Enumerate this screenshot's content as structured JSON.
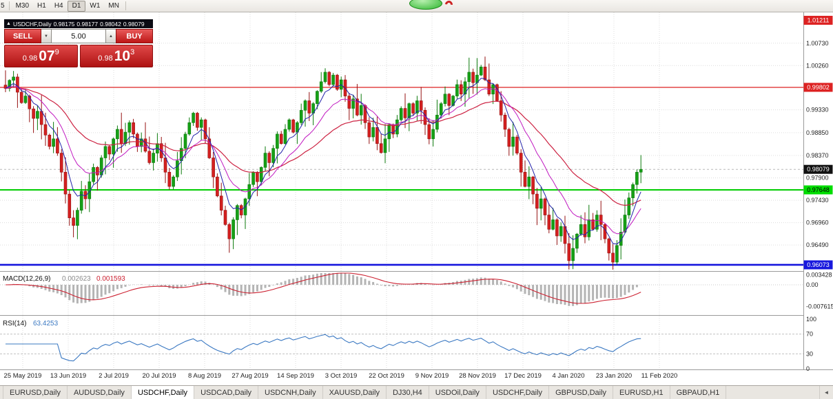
{
  "toolbar": {
    "timeframes": [
      {
        "label": "5",
        "active": false
      },
      {
        "label": "M30",
        "active": false
      },
      {
        "label": "H1",
        "active": false
      },
      {
        "label": "H4",
        "active": false
      },
      {
        "label": "D1",
        "active": true
      },
      {
        "label": "W1",
        "active": false
      },
      {
        "label": "MN",
        "active": false
      }
    ]
  },
  "trade_panel": {
    "collapse_icon": "▲",
    "title": "USDCHF,Daily",
    "ohlc": [
      "0.98175",
      "0.98177",
      "0.98042",
      "0.98079"
    ],
    "sell_label": "SELL",
    "buy_label": "BUY",
    "volume": "5.00",
    "down_icon": "▼",
    "up_icon": "▲",
    "sell_price": {
      "prefix": "0.98",
      "big": "07",
      "sup": "9"
    },
    "buy_price": {
      "prefix": "0.98",
      "big": "10",
      "sup": "3"
    }
  },
  "chart_data": {
    "type": "candlestick",
    "symbol": "USDCHF",
    "timeframe": "Daily",
    "price_range_visible": [
      0.9594,
      1.0138
    ],
    "bid_price": 0.98079,
    "first_open": 0.9985,
    "closes": [
      0.9978,
      0.9995,
      1.0002,
      0.997,
      0.9948,
      0.9962,
      0.9935,
      0.9915,
      0.993,
      0.9902,
      0.988,
      0.9856,
      0.9872,
      0.9842,
      0.9802,
      0.9756,
      0.9706,
      0.969,
      0.9722,
      0.9762,
      0.9746,
      0.9782,
      0.9812,
      0.9796,
      0.9832,
      0.9856,
      0.984,
      0.9872,
      0.9892,
      0.9862,
      0.9886,
      0.9906,
      0.9882,
      0.9856,
      0.9872,
      0.9846,
      0.9822,
      0.9842,
      0.9862,
      0.9832,
      0.9802,
      0.9772,
      0.9792,
      0.9826,
      0.9852,
      0.9882,
      0.9906,
      0.9926,
      0.9896,
      0.9912,
      0.9872,
      0.9832,
      0.9792,
      0.9752,
      0.9722,
      0.9692,
      0.9662,
      0.9702,
      0.9732,
      0.9712,
      0.9746,
      0.9776,
      0.9802,
      0.9782,
      0.9812,
      0.9842,
      0.9822,
      0.9852,
      0.9882,
      0.9862,
      0.9892,
      0.9912,
      0.9886,
      0.9906,
      0.9932,
      0.9952,
      0.9926,
      0.9946,
      0.9972,
      0.9992,
      1.0012,
      0.9986,
      1.0006,
      0.9976,
      0.9996,
      0.9962,
      0.9936,
      0.9956,
      0.9922,
      0.9942,
      0.9906,
      0.9876,
      0.9896,
      0.9862,
      0.9843,
      0.9872,
      0.9902,
      0.9882,
      0.9912,
      0.9936,
      0.9916,
      0.9946,
      0.9926,
      0.9952,
      0.9932,
      0.9902,
      0.9872,
      0.9892,
      0.9922,
      0.9946,
      0.9966,
      0.9942,
      0.9962,
      0.9986,
      0.9966,
      0.9992,
      1.0012,
      0.999,
      1.0006,
      1.0023,
      0.9996,
      0.9966,
      0.9986,
      0.9952,
      0.9922,
      0.9892,
      0.9856,
      0.9876,
      0.9842,
      0.9802,
      0.9772,
      0.9792,
      0.9756,
      0.9726,
      0.9746,
      0.9712,
      0.9682,
      0.9702,
      0.9668,
      0.9688,
      0.9652,
      0.9616,
      0.9642,
      0.9672,
      0.9692,
      0.9666,
      0.9702,
      0.9682,
      0.9712,
      0.9692,
      0.9662,
      0.9632,
      0.9613,
      0.9648,
      0.9676,
      0.9712,
      0.9748,
      0.9776,
      0.9802,
      0.98079
    ],
    "price_axis_labels": [
      "1.00730",
      "1.00260",
      "0.99330",
      "0.98850",
      "0.98370",
      "0.97900",
      "0.97430",
      "0.96960",
      "0.96490"
    ],
    "price_badges": [
      {
        "text": "1.01211",
        "bg": "#dd2222",
        "fg": "#ffffff"
      },
      {
        "text": "0.99802",
        "bg": "#dd2222",
        "fg": "#ffffff"
      },
      {
        "text": "0.98079",
        "bg": "#111111",
        "fg": "#ffffff"
      },
      {
        "text": "0.97648",
        "bg": "#00dd00",
        "fg": "#000000"
      },
      {
        "text": "0.96073",
        "bg": "#1818dd",
        "fg": "#ffffff"
      }
    ],
    "hlines": [
      {
        "price": 0.99802,
        "color": "#dd2222",
        "width": 1.2,
        "name": "resistance-line-red"
      },
      {
        "price": 0.97648,
        "color": "#00cc00",
        "width": 2,
        "name": "support-line-green"
      },
      {
        "price": 0.96073,
        "color": "#1515dd",
        "width": 2.6,
        "name": "support-line-blue"
      }
    ],
    "date_labels": [
      "25 May 2019",
      "13 Jun 2019",
      "2 Jul 2019",
      "20 Jul 2019",
      "8 Aug 2019",
      "27 Aug 2019",
      "14 Sep 2019",
      "3 Oct 2019",
      "22 Oct 2019",
      "9 Nov 2019",
      "28 Nov 2019",
      "17 Dec 2019",
      "4 Jan 2020",
      "23 Jan 2020",
      "11 Feb 2020"
    ],
    "macd": {
      "label": "MACD(12,26,9)",
      "params": [
        12,
        26,
        9
      ],
      "value_main": "0.002623",
      "value_signal": "0.001593",
      "axis_labels": [
        "0.003428",
        "0.00",
        "-0.007615"
      ]
    },
    "rsi": {
      "label": "RSI(14)",
      "period": 14,
      "value": "63.4253",
      "axis_labels": [
        "100",
        "70",
        "30",
        "0"
      ],
      "levels": [
        70,
        30
      ]
    },
    "colors": {
      "up": "#16a016",
      "up_stroke": "#0b7a0b",
      "down": "#d42020",
      "down_stroke": "#951010",
      "ma_fast": "#2222aa",
      "ma_mid": "#c018c0",
      "ma_slow": "#cc2040",
      "macd_hist": "#b4b4b4",
      "macd_signal": "#cc2030",
      "rsi": "#3a78c2"
    }
  },
  "tabbar": {
    "scroll_left_icon": "◄",
    "tabs": [
      {
        "label": "EURUSD,Daily",
        "active": false
      },
      {
        "label": "AUDUSD,Daily",
        "active": false
      },
      {
        "label": "USDCHF,Daily",
        "active": true
      },
      {
        "label": "USDCAD,Daily",
        "active": false
      },
      {
        "label": "USDCNH,Daily",
        "active": false
      },
      {
        "label": "XAUUSD,Daily",
        "active": false
      },
      {
        "label": "DJ30,H4",
        "active": false
      },
      {
        "label": "USDOil,Daily",
        "active": false
      },
      {
        "label": "USDCHF,Daily",
        "active": false
      },
      {
        "label": "GBPUSD,Daily",
        "active": false
      },
      {
        "label": "EURUSD,H1",
        "active": false
      },
      {
        "label": "GBPAUD,H1",
        "active": false
      }
    ]
  }
}
